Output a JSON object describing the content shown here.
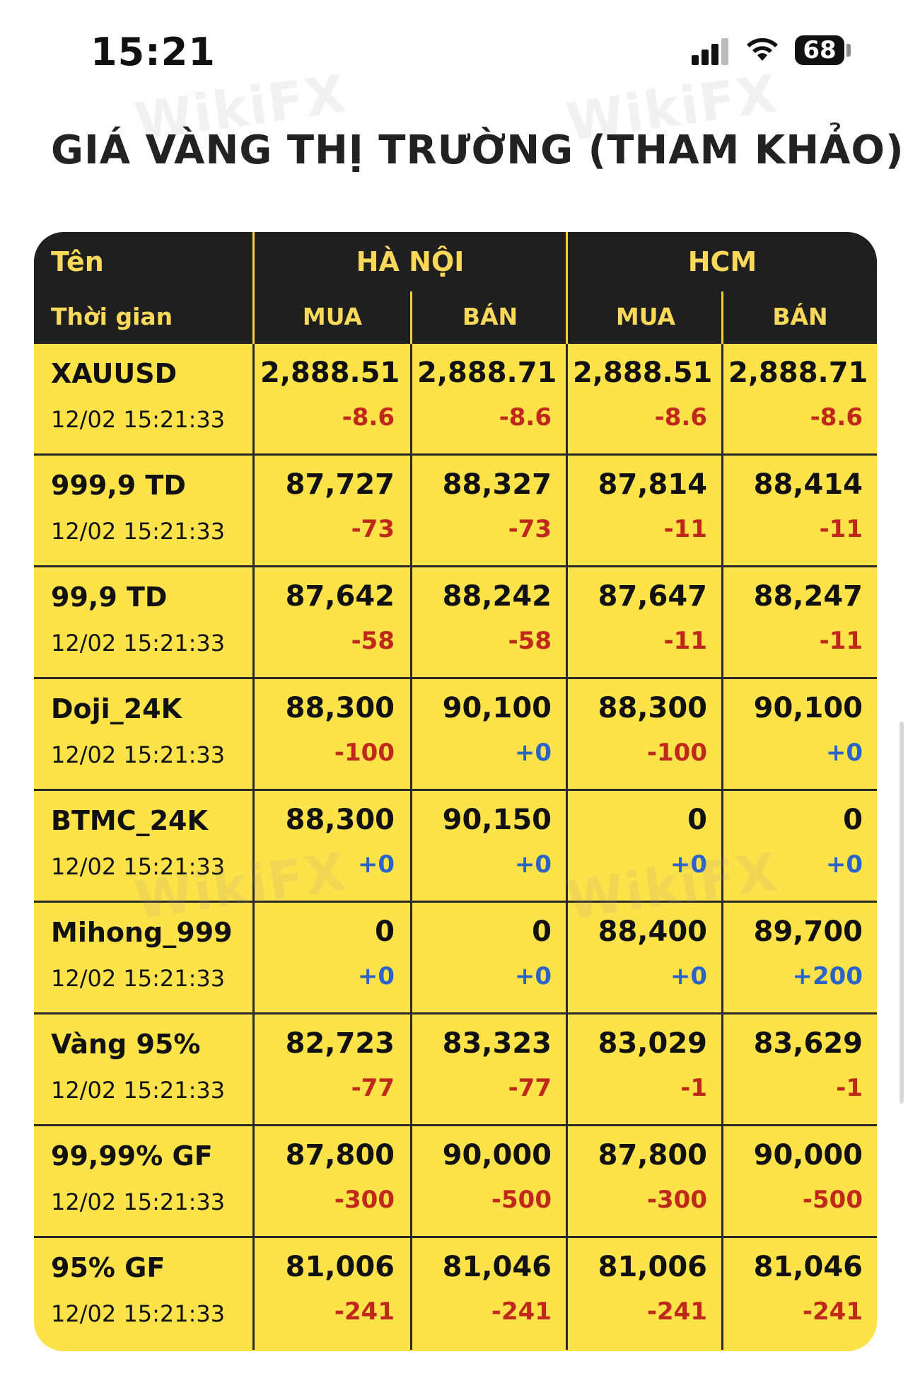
{
  "status": {
    "time": "15:21",
    "battery": "68"
  },
  "page_title": "GIÁ VÀNG THỊ TRƯỜNG (THAM KHẢO)",
  "watermark": "WikiFX",
  "header": {
    "name_label": "Tên",
    "time_label": "Thời gian",
    "hanoi": "HÀ NỘI",
    "hcm": "HCM",
    "buy": "MUA",
    "sell": "BÁN"
  },
  "rows": [
    {
      "name": "XAUUSD",
      "time": "12/02 15:21:33",
      "hn_buy": "2,888.51",
      "hn_buy_chg": "-8.6",
      "hn_sell": "2,888.71",
      "hn_sell_chg": "-8.6",
      "hcm_buy": "2,888.51",
      "hcm_buy_chg": "-8.6",
      "hcm_sell": "2,888.71",
      "hcm_sell_chg": "-8.6"
    },
    {
      "name": "999,9 TD",
      "time": "12/02 15:21:33",
      "hn_buy": "87,727",
      "hn_buy_chg": "-73",
      "hn_sell": "88,327",
      "hn_sell_chg": "-73",
      "hcm_buy": "87,814",
      "hcm_buy_chg": "-11",
      "hcm_sell": "88,414",
      "hcm_sell_chg": "-11"
    },
    {
      "name": "99,9 TD",
      "time": "12/02 15:21:33",
      "hn_buy": "87,642",
      "hn_buy_chg": "-58",
      "hn_sell": "88,242",
      "hn_sell_chg": "-58",
      "hcm_buy": "87,647",
      "hcm_buy_chg": "-11",
      "hcm_sell": "88,247",
      "hcm_sell_chg": "-11"
    },
    {
      "name": "Doji_24K",
      "time": "12/02 15:21:33",
      "hn_buy": "88,300",
      "hn_buy_chg": "-100",
      "hn_sell": "90,100",
      "hn_sell_chg": "+0",
      "hcm_buy": "88,300",
      "hcm_buy_chg": "-100",
      "hcm_sell": "90,100",
      "hcm_sell_chg": "+0"
    },
    {
      "name": "BTMC_24K",
      "time": "12/02 15:21:33",
      "hn_buy": "88,300",
      "hn_buy_chg": "+0",
      "hn_sell": "90,150",
      "hn_sell_chg": "+0",
      "hcm_buy": "0",
      "hcm_buy_chg": "+0",
      "hcm_sell": "0",
      "hcm_sell_chg": "+0"
    },
    {
      "name": "Mihong_999",
      "time": "12/02 15:21:33",
      "hn_buy": "0",
      "hn_buy_chg": "+0",
      "hn_sell": "0",
      "hn_sell_chg": "+0",
      "hcm_buy": "88,400",
      "hcm_buy_chg": "+0",
      "hcm_sell": "89,700",
      "hcm_sell_chg": "+200"
    },
    {
      "name": "Vàng 95%",
      "time": "12/02 15:21:33",
      "hn_buy": "82,723",
      "hn_buy_chg": "-77",
      "hn_sell": "83,323",
      "hn_sell_chg": "-77",
      "hcm_buy": "83,029",
      "hcm_buy_chg": "-1",
      "hcm_sell": "83,629",
      "hcm_sell_chg": "-1"
    },
    {
      "name": "99,99% GF",
      "time": "12/02 15:21:33",
      "hn_buy": "87,800",
      "hn_buy_chg": "-300",
      "hn_sell": "90,000",
      "hn_sell_chg": "-500",
      "hcm_buy": "87,800",
      "hcm_buy_chg": "-300",
      "hcm_sell": "90,000",
      "hcm_sell_chg": "-500"
    },
    {
      "name": "95% GF",
      "time": "12/02 15:21:33",
      "hn_buy": "81,006",
      "hn_buy_chg": "-241",
      "hn_sell": "81,046",
      "hn_sell_chg": "-241",
      "hcm_buy": "81,006",
      "hcm_buy_chg": "-241",
      "hcm_sell": "81,046",
      "hcm_sell_chg": "-241"
    }
  ],
  "colors": {
    "header_bg": "#1f1f1f",
    "header_text": "#f9d85a",
    "row_bg": "#fde24a",
    "negative": "#c0281b",
    "positive": "#2a64c8"
  }
}
